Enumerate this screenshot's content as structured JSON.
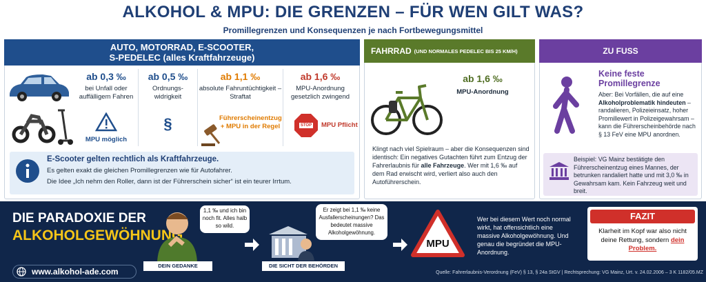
{
  "header": {
    "title": "ALKOHOL & MPU: DIE GRENZEN – FÜR WEN GILT WAS?",
    "subtitle": "Promillegrenzen und Konsequenzen je nach Fortbewegungsmittel"
  },
  "auto": {
    "title_lines": [
      "AUTO, MOTORRAD, E-SCOOTER,",
      "S-PEDELEC (alles Kraftfahrzeuge)"
    ],
    "columns": [
      {
        "limit": "ab 0,3 ‰",
        "desc": "bei Unfall oder auffälligem Fahren",
        "badge": "MPU möglich"
      },
      {
        "limit": "ab 0,5 ‰",
        "desc": "Ordnungs-widrigkeit",
        "badge": "§"
      },
      {
        "limit": "ab 1,1 ‰",
        "desc": "absolute Fahruntüchtigkeit – Straftat",
        "badge": "Führerscheinentzug + MPU in der Regel"
      },
      {
        "limit": "ab 1,6 ‰",
        "desc": "MPU-Anordnung gesetzlich zwingend",
        "badge": "MPU Pflicht",
        "sign": "STOP"
      }
    ],
    "info": {
      "heading": "E-Scooter gelten rechtlich als Kraftfahrzeuge.",
      "lines": [
        "Es gelten exakt die gleichen Promillegrenzen wie für Autofahrer.",
        "Die Idee „Ich nehm den Roller, dann ist der Führerschein sicher“ ist ein teurer Irrtum."
      ]
    }
  },
  "fahrrad": {
    "title": "FAHRRAD",
    "title_note": "(UND NORMALES PEDELEC BIS 25 KM/H)",
    "limit": "ab 1,6 ‰",
    "desc": "MPU-Anordnung",
    "text": [
      "Klingt nach viel Spielraum – aber die Konsequenzen sind identisch: Ein negatives Gutachten führt zum Entzug der Fahrerlaubnis für ",
      "alle Fahrzeuge",
      ". Wer mit 1,6 ‰ auf dem Rad erwischt wird, verliert also auch den Autoführerschein."
    ]
  },
  "fuss": {
    "title": "ZU FUSS",
    "heading": "Keine feste Promillegrenze",
    "text": [
      "Aber: Bei Vorfällen, die auf eine ",
      "Alkoholproblematik hindeuten",
      " – randalieren, Polizeieinsatz, hoher Promillewert in Polizeigewahrsam – kann die Führerscheinbehörde nach § 13 FeV eine MPU anordnen."
    ],
    "example": "Beispiel: VG Mainz bestätigte den Führerscheinentzug eines Mannes, der betrunken randaliert hatte und mit 3,0 ‰ in Gewahrsam kam. Kein Fahrzeug weit und breit."
  },
  "paradox": {
    "title_lines": [
      "DIE PARADOXIE DER",
      "ALKOHOLGEWÖHNUNG"
    ],
    "thought": "1,1 ‰ und ich bin noch fit. Alles halb so wild.",
    "thought_label": "DEIN GEDANKE",
    "authority": "Er zeigt bei 1,1 ‰ keine Ausfallerscheinungen? Das bedeutet massive Alkoholgewöhnung.",
    "authority_label": "DIE SICHT DER BEHÖRDEN",
    "sign": "MPU",
    "text": "Wer bei diesem Wert noch normal wirkt, hat offensichtlich eine massive Alkoholgewöhnung. Und genau die begründet die MPU-Anordnung.",
    "fazit": {
      "title": "FAZIT",
      "text": [
        "Klarheit im Kopf war also nicht deine Rettung, sondern ",
        "dein Problem."
      ]
    }
  },
  "footer": {
    "url": "www.alkohol-ade.com",
    "source": "Quelle: Fahrerlaubnis-Verordnung (FeV) § 13, § 24a StGV | Rechtsprechung: VG Mainz, Urt. v. 24.02.2006 – 3 K 1182/05.MZ"
  }
}
